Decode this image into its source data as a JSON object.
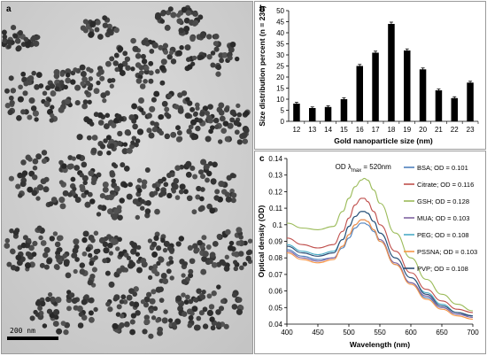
{
  "panels": {
    "a": {
      "letter": "a",
      "scale_bar_label": "200  nm"
    },
    "b": {
      "letter": "b"
    },
    "c": {
      "letter": "c"
    }
  },
  "chart_data": [
    {
      "type": "bar",
      "panel": "b",
      "categories": [
        "12",
        "13",
        "14",
        "15",
        "16",
        "17",
        "18",
        "19",
        "20",
        "21",
        "22",
        "23"
      ],
      "values": [
        8,
        6,
        6.5,
        10,
        25,
        31,
        44,
        32,
        23.5,
        14,
        10.5,
        17.5
      ],
      "errors": [
        0.6,
        0.5,
        0.5,
        0.6,
        0.7,
        0.7,
        0.8,
        0.7,
        0.6,
        0.6,
        0.6,
        0.6
      ],
      "xlabel": "Gold nanoparticle size (nm)",
      "ylabel": "Size distribution percent (n = 230)",
      "ylim": [
        0,
        50
      ],
      "yticks": [
        0,
        5,
        10,
        15,
        20,
        25,
        30,
        35,
        40,
        45,
        50
      ],
      "bar_color": "#000000",
      "grid": false
    },
    {
      "type": "line",
      "panel": "c",
      "xlabel": "Wavelength (nm)",
      "ylabel": "Optical density (OD)",
      "xlim": [
        400,
        700
      ],
      "ylim": [
        0.04,
        0.14
      ],
      "xticks": [
        400,
        450,
        500,
        550,
        600,
        650,
        700
      ],
      "yticks": [
        0.04,
        0.05,
        0.06,
        0.07,
        0.08,
        0.09,
        0.1,
        0.11,
        0.12,
        0.13,
        0.14
      ],
      "ytick_labels": [
        "0.04",
        "0.05",
        "0.06",
        "0.07",
        "0.08",
        "0.09",
        "0.1",
        "0.11",
        "0.12",
        "0.13",
        "0.14"
      ],
      "annotation": {
        "prefix": "OD λ",
        "sub": "max",
        "suffix": " = 520nm"
      },
      "x": [
        400,
        425,
        450,
        475,
        490,
        500,
        510,
        520,
        525,
        530,
        540,
        550,
        575,
        600,
        625,
        650,
        675,
        700
      ],
      "legend_position": "right",
      "grid": false,
      "series": [
        {
          "name": "BSA; OD = 0.101",
          "color": "#4f81bd",
          "values": [
            0.085,
            0.081,
            0.079,
            0.08,
            0.086,
            0.092,
            0.098,
            0.101,
            0.101,
            0.1,
            0.096,
            0.09,
            0.076,
            0.065,
            0.056,
            0.05,
            0.046,
            0.045
          ]
        },
        {
          "name": "Citrate; OD = 0.116",
          "color": "#c0504d",
          "values": [
            0.092,
            0.088,
            0.086,
            0.088,
            0.096,
            0.104,
            0.112,
            0.116,
            0.116,
            0.114,
            0.108,
            0.1,
            0.084,
            0.071,
            0.061,
            0.054,
            0.049,
            0.047
          ]
        },
        {
          "name": "GSH; OD = 0.128",
          "color": "#9bbb59",
          "values": [
            0.101,
            0.098,
            0.097,
            0.099,
            0.108,
            0.116,
            0.123,
            0.127,
            0.128,
            0.127,
            0.121,
            0.113,
            0.095,
            0.08,
            0.067,
            0.058,
            0.052,
            0.048
          ]
        },
        {
          "name": "MUA; OD = 0.103",
          "color": "#8064a2",
          "values": [
            0.084,
            0.08,
            0.078,
            0.08,
            0.087,
            0.094,
            0.1,
            0.103,
            0.103,
            0.102,
            0.097,
            0.091,
            0.077,
            0.065,
            0.057,
            0.05,
            0.046,
            0.044
          ]
        },
        {
          "name": "PEG; OD = 0.108",
          "color": "#4bacc6",
          "values": [
            0.088,
            0.084,
            0.082,
            0.084,
            0.091,
            0.099,
            0.105,
            0.108,
            0.108,
            0.107,
            0.102,
            0.095,
            0.08,
            0.068,
            0.059,
            0.052,
            0.047,
            0.045
          ]
        },
        {
          "name": "PSSNA; OD = 0.103",
          "color": "#f79646",
          "values": [
            0.083,
            0.079,
            0.077,
            0.079,
            0.087,
            0.094,
            0.1,
            0.103,
            0.103,
            0.102,
            0.097,
            0.09,
            0.076,
            0.064,
            0.055,
            0.049,
            0.045,
            0.043
          ]
        },
        {
          "name": "PVP; OD = 0.108",
          "color": "#2c4d75",
          "values": [
            0.087,
            0.083,
            0.081,
            0.083,
            0.091,
            0.099,
            0.105,
            0.108,
            0.108,
            0.107,
            0.102,
            0.095,
            0.08,
            0.068,
            0.058,
            0.051,
            0.047,
            0.045
          ]
        }
      ]
    }
  ]
}
